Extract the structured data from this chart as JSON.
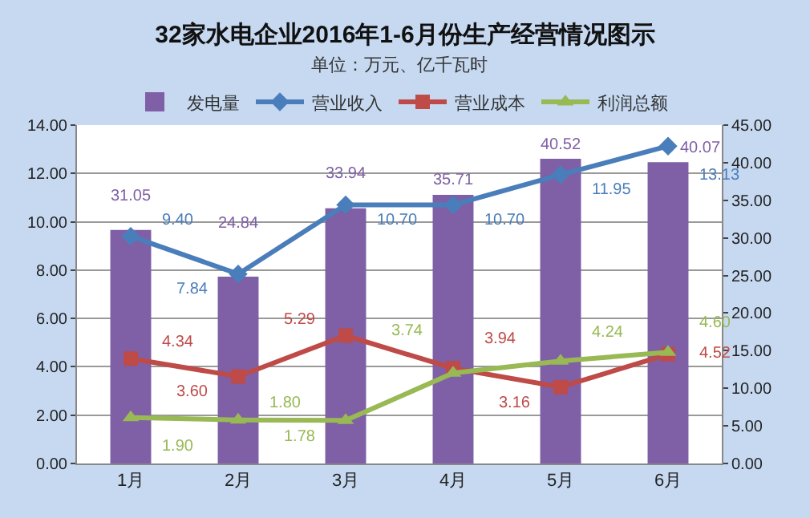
{
  "chart_data": {
    "type": "bar",
    "title": "32家水电企业2016年1-6月份生产经营情况图示",
    "subtitle": "单位：万元、亿千瓦时",
    "categories": [
      "1月",
      "2月",
      "3月",
      "4月",
      "5月",
      "6月"
    ],
    "series": [
      {
        "name": "发电量",
        "axis": "y2",
        "color": "#7f5fa5",
        "values": [
          31.05,
          24.84,
          33.94,
          35.71,
          40.52,
          40.07
        ],
        "value_labels": [
          "31.05",
          "24.84",
          "33.94",
          "35.71",
          "40.52",
          "40.07"
        ]
      },
      {
        "name": "营业收入",
        "type": "line",
        "color": "#4a7ebb",
        "marker": "diamond",
        "values": [
          9.4,
          7.84,
          10.7,
          10.7,
          11.95,
          13.13
        ],
        "value_labels": [
          "9.40",
          "7.84",
          "10.70",
          "10.70",
          "11.95",
          "13.13"
        ]
      },
      {
        "name": "营业成本",
        "type": "line",
        "color": "#be4b48",
        "marker": "square",
        "values": [
          4.34,
          3.6,
          5.29,
          3.94,
          3.16,
          4.52
        ],
        "value_labels": [
          "4.34",
          "3.60",
          "5.29",
          "3.94",
          "3.16",
          "4.52"
        ]
      },
      {
        "name": "利润总额",
        "type": "line",
        "color": "#98b954",
        "marker": "triangle",
        "values": [
          1.9,
          1.8,
          1.78,
          3.74,
          4.24,
          4.6
        ],
        "value_labels": [
          "1.90",
          "1.80",
          "1.78",
          "3.74",
          "4.24",
          "4.60"
        ]
      }
    ],
    "ylim": [
      0,
      14
    ],
    "yticks": [
      {
        "value": 0,
        "label": "0.00"
      },
      {
        "value": 2,
        "label": "2.00"
      },
      {
        "value": 4,
        "label": "4.00"
      },
      {
        "value": 6,
        "label": "6.00"
      },
      {
        "value": 8,
        "label": "8.00"
      },
      {
        "value": 10,
        "label": "10.00"
      },
      {
        "value": 12,
        "label": "12.00"
      },
      {
        "value": 14,
        "label": "14.00"
      }
    ],
    "y2lim": [
      0,
      45
    ],
    "y2ticks": [
      {
        "value": 0,
        "label": "0.00"
      },
      {
        "value": 5,
        "label": "5.00"
      },
      {
        "value": 10,
        "label": "10.00"
      },
      {
        "value": 15,
        "label": "15.00"
      },
      {
        "value": 20,
        "label": "20.00"
      },
      {
        "value": 25,
        "label": "25.00"
      },
      {
        "value": 30,
        "label": "30.00"
      },
      {
        "value": 35,
        "label": "35.00"
      },
      {
        "value": 40,
        "label": "40.00"
      },
      {
        "value": 45,
        "label": "45.00"
      }
    ],
    "grid": "y",
    "legend": "top"
  }
}
